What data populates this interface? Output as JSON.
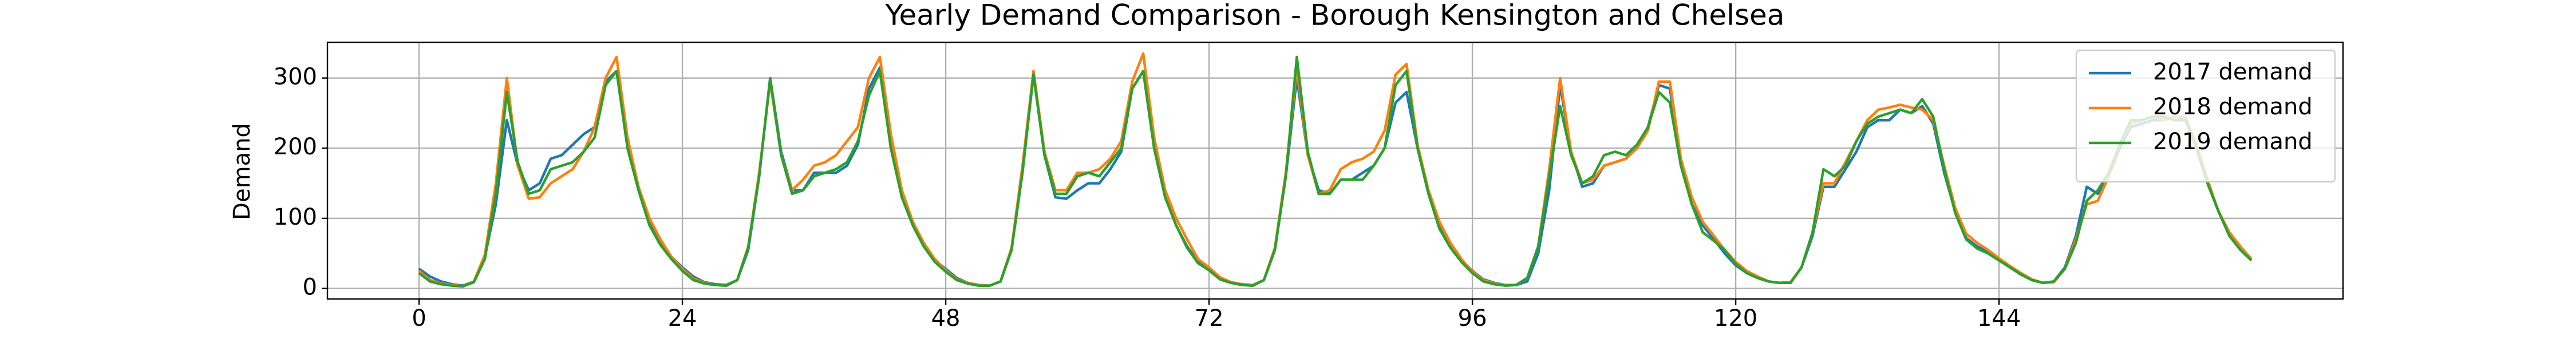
{
  "chart_data": {
    "type": "line",
    "title": "Yearly Demand Comparison - Borough Kensington and Chelsea",
    "y_label": "Demand",
    "x": [
      0,
      1,
      2,
      3,
      4,
      5,
      6,
      7,
      8,
      9,
      10,
      11,
      12,
      13,
      14,
      15,
      16,
      17,
      18,
      19,
      20,
      21,
      22,
      23,
      24,
      25,
      26,
      27,
      28,
      29,
      30,
      31,
      32,
      33,
      34,
      35,
      36,
      37,
      38,
      39,
      40,
      41,
      42,
      43,
      44,
      45,
      46,
      47,
      48,
      49,
      50,
      51,
      52,
      53,
      54,
      55,
      56,
      57,
      58,
      59,
      60,
      61,
      62,
      63,
      64,
      65,
      66,
      67,
      68,
      69,
      70,
      71,
      72,
      73,
      74,
      75,
      76,
      77,
      78,
      79,
      80,
      81,
      82,
      83,
      84,
      85,
      86,
      87,
      88,
      89,
      90,
      91,
      92,
      93,
      94,
      95,
      96,
      97,
      98,
      99,
      100,
      101,
      102,
      103,
      104,
      105,
      106,
      107,
      108,
      109,
      110,
      111,
      112,
      113,
      114,
      115,
      116,
      117,
      118,
      119,
      120,
      121,
      122,
      123,
      124,
      125,
      126,
      127,
      128,
      129,
      130,
      131,
      132,
      133,
      134,
      135,
      136,
      137,
      138,
      139,
      140,
      141,
      142,
      143,
      144,
      145,
      146,
      147,
      148,
      149,
      150,
      151,
      152,
      153,
      154,
      155,
      156,
      157,
      158,
      159,
      160,
      161,
      162,
      163,
      164,
      165,
      166,
      167
    ],
    "series": [
      {
        "name": "2017 demand",
        "color": "#1f77b4",
        "values": [
          28,
          17,
          10,
          6,
          4,
          10,
          45,
          120,
          240,
          175,
          140,
          150,
          185,
          190,
          205,
          220,
          230,
          295,
          310,
          210,
          140,
          95,
          65,
          45,
          30,
          17,
          9,
          6,
          5,
          12,
          55,
          160,
          300,
          195,
          140,
          140,
          165,
          165,
          165,
          175,
          205,
          285,
          315,
          205,
          135,
          90,
          60,
          40,
          28,
          15,
          8,
          5,
          4,
          10,
          55,
          170,
          305,
          190,
          130,
          128,
          140,
          150,
          150,
          170,
          195,
          285,
          310,
          200,
          130,
          90,
          60,
          38,
          28,
          15,
          9,
          6,
          5,
          12,
          55,
          160,
          300,
          190,
          140,
          135,
          155,
          155,
          165,
          175,
          200,
          265,
          280,
          200,
          135,
          90,
          60,
          40,
          25,
          13,
          8,
          5,
          5,
          10,
          50,
          140,
          290,
          195,
          145,
          150,
          175,
          180,
          185,
          200,
          230,
          290,
          285,
          180,
          120,
          90,
          70,
          50,
          33,
          22,
          15,
          10,
          8,
          9,
          30,
          75,
          145,
          145,
          170,
          195,
          230,
          240,
          240,
          255,
          250,
          260,
          235,
          165,
          110,
          72,
          60,
          52,
          42,
          30,
          20,
          12,
          8,
          10,
          30,
          75,
          145,
          135,
          160,
          200,
          230,
          235,
          240,
          240,
          245,
          240,
          200,
          150,
          110,
          75,
          55,
          40
        ]
      },
      {
        "name": "2018 demand",
        "color": "#ff7f0e",
        "values": [
          25,
          12,
          7,
          5,
          3,
          10,
          48,
          150,
          300,
          175,
          128,
          130,
          150,
          160,
          170,
          195,
          230,
          300,
          330,
          215,
          145,
          100,
          70,
          45,
          28,
          14,
          8,
          5,
          4,
          12,
          60,
          165,
          295,
          190,
          140,
          155,
          175,
          180,
          190,
          210,
          230,
          300,
          330,
          220,
          140,
          95,
          65,
          42,
          26,
          13,
          8,
          5,
          4,
          10,
          58,
          175,
          310,
          195,
          140,
          140,
          165,
          165,
          170,
          185,
          210,
          295,
          335,
          215,
          140,
          100,
          70,
          42,
          30,
          16,
          9,
          6,
          5,
          12,
          58,
          165,
          315,
          190,
          135,
          140,
          170,
          180,
          185,
          195,
          225,
          305,
          320,
          205,
          140,
          95,
          65,
          42,
          24,
          12,
          7,
          5,
          5,
          15,
          60,
          170,
          300,
          195,
          150,
          155,
          175,
          180,
          185,
          200,
          225,
          295,
          295,
          185,
          130,
          95,
          75,
          55,
          38,
          25,
          17,
          10,
          8,
          9,
          30,
          80,
          150,
          150,
          180,
          210,
          240,
          255,
          258,
          262,
          258,
          255,
          240,
          175,
          115,
          78,
          65,
          55,
          43,
          32,
          22,
          13,
          8,
          9,
          28,
          70,
          120,
          125,
          160,
          205,
          235,
          240,
          245,
          240,
          245,
          245,
          205,
          155,
          110,
          80,
          60,
          42
        ]
      },
      {
        "name": "2019 demand",
        "color": "#2ca02c",
        "values": [
          22,
          10,
          6,
          4,
          3,
          9,
          42,
          135,
          280,
          180,
          135,
          140,
          170,
          175,
          180,
          195,
          215,
          290,
          310,
          200,
          140,
          90,
          62,
          42,
          25,
          12,
          7,
          5,
          4,
          12,
          58,
          160,
          300,
          190,
          135,
          140,
          160,
          165,
          170,
          180,
          210,
          275,
          310,
          200,
          130,
          90,
          60,
          38,
          24,
          12,
          7,
          4,
          4,
          10,
          55,
          165,
          305,
          190,
          135,
          135,
          160,
          165,
          160,
          180,
          200,
          285,
          310,
          200,
          130,
          90,
          58,
          36,
          26,
          13,
          8,
          5,
          4,
          12,
          55,
          160,
          330,
          195,
          135,
          135,
          155,
          155,
          155,
          175,
          200,
          290,
          310,
          200,
          135,
          85,
          58,
          38,
          22,
          10,
          6,
          4,
          5,
          15,
          60,
          160,
          260,
          190,
          150,
          160,
          190,
          195,
          190,
          205,
          230,
          280,
          265,
          175,
          120,
          80,
          68,
          55,
          35,
          22,
          15,
          10,
          8,
          8,
          30,
          80,
          170,
          160,
          175,
          210,
          235,
          245,
          250,
          255,
          250,
          270,
          245,
          170,
          108,
          70,
          57,
          50,
          40,
          30,
          20,
          12,
          8,
          10,
          28,
          65,
          125,
          140,
          165,
          205,
          240,
          240,
          245,
          245,
          240,
          240,
          200,
          150,
          110,
          75,
          55,
          40
        ]
      }
    ],
    "xlim": [
      -8.35,
      175.35
    ],
    "xticks": [
      0,
      24,
      48,
      72,
      96,
      120,
      144
    ],
    "ylim": [
      -15,
      351
    ],
    "yticks": [
      0,
      100,
      200,
      300
    ],
    "grid": true,
    "legend": "upper right"
  }
}
